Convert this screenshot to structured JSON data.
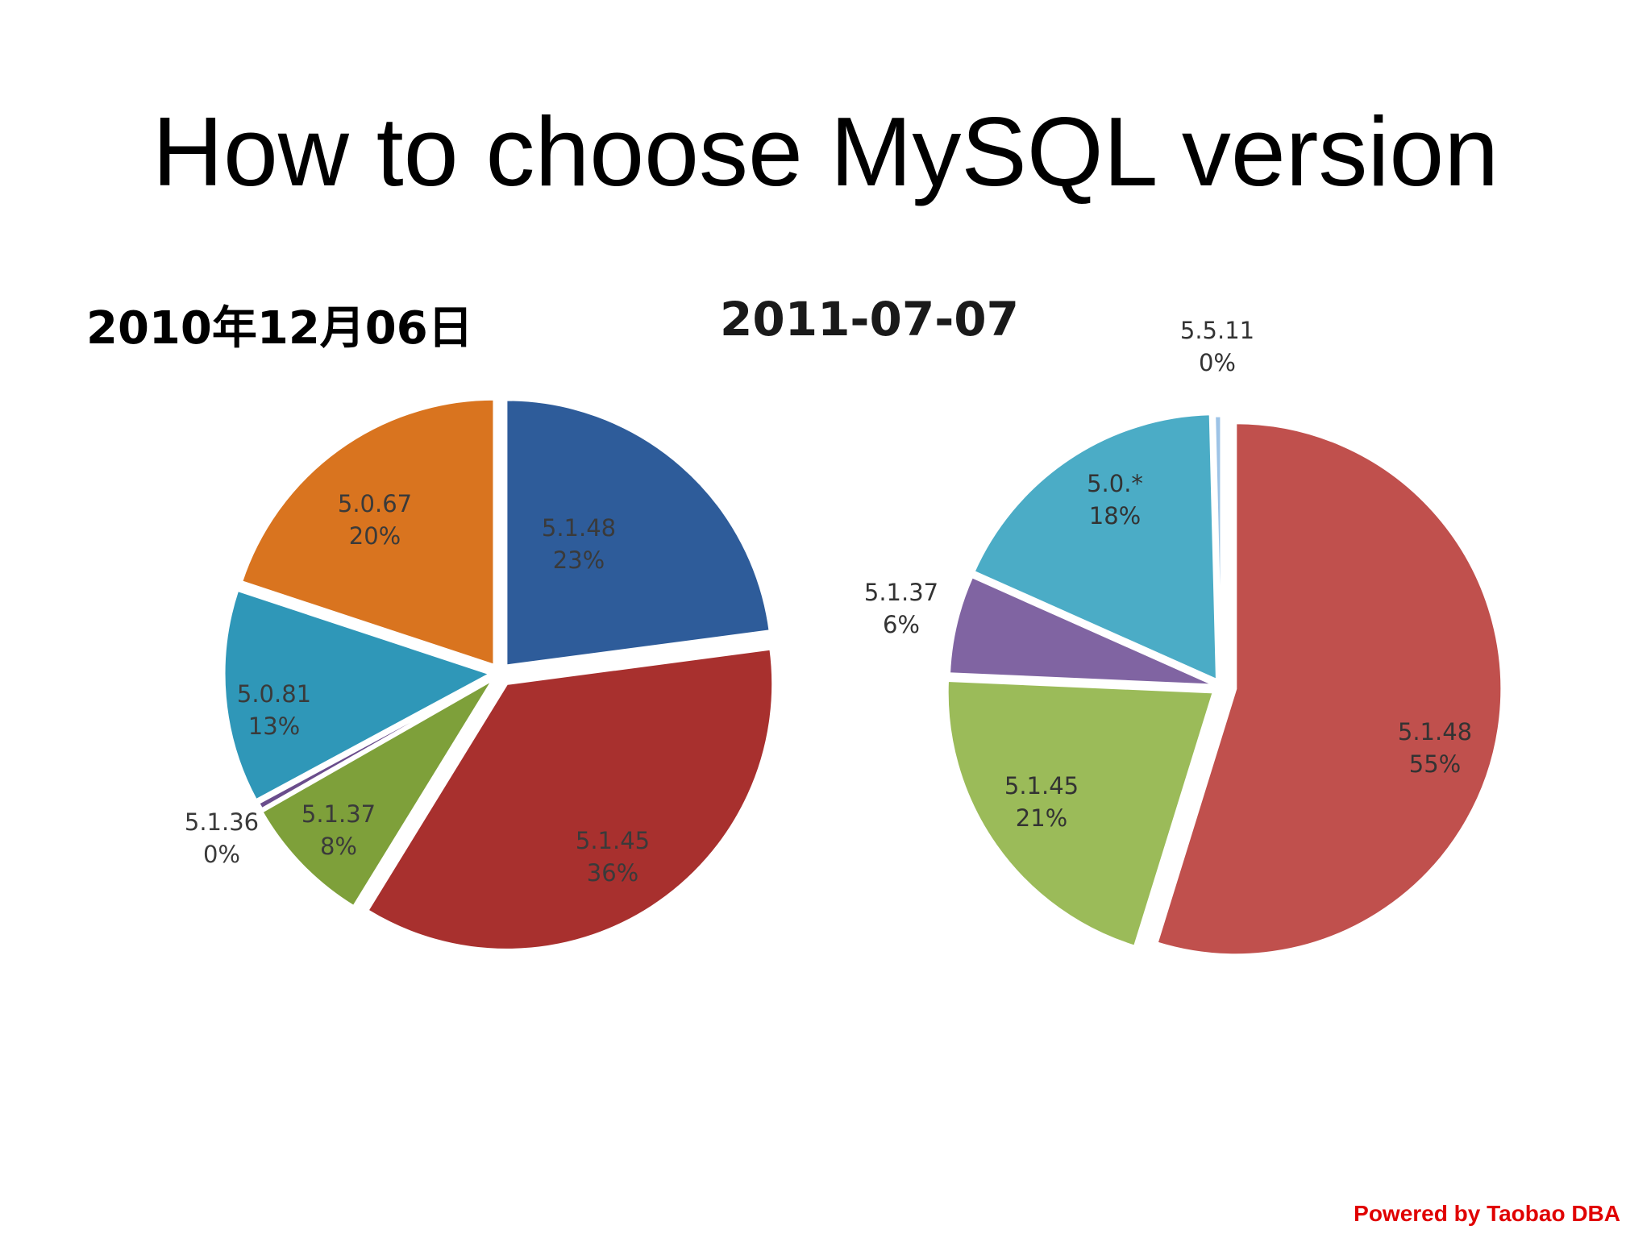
{
  "slide": {
    "title": "How to choose MySQL version",
    "footer": "Powered by Taobao DBA"
  },
  "chart_data": [
    {
      "type": "pie",
      "title": "2010年12月06日",
      "slices": [
        {
          "label": "5.1.48",
          "percent_label": "23%",
          "value": 23,
          "color": "#2e5c9a"
        },
        {
          "label": "5.1.45",
          "percent_label": "36%",
          "value": 36,
          "color": "#a8302e"
        },
        {
          "label": "5.1.37",
          "percent_label": "8%",
          "value": 8,
          "color": "#7ea03a"
        },
        {
          "label": "5.1.36",
          "percent_label": "0%",
          "value": 0.4,
          "color": "#6a4d8c"
        },
        {
          "label": "5.0.81",
          "percent_label": "13%",
          "value": 13,
          "color": "#2f97b8"
        },
        {
          "label": "5.0.67",
          "percent_label": "20%",
          "value": 20,
          "color": "#d9741f"
        }
      ]
    },
    {
      "type": "pie",
      "title": "2011-07-07",
      "slices": [
        {
          "label": "5.1.48",
          "percent_label": "55%",
          "value": 55,
          "color": "#c0504d"
        },
        {
          "label": "5.1.45",
          "percent_label": "21%",
          "value": 21,
          "color": "#9bbb59"
        },
        {
          "label": "5.1.37",
          "percent_label": "6%",
          "value": 6,
          "color": "#8064a2"
        },
        {
          "label": "5.0.*",
          "percent_label": "18%",
          "value": 18,
          "color": "#4bacc6"
        },
        {
          "label": "5.5.11",
          "percent_label": "0%",
          "value": 0.4,
          "color": "#9dc3e6"
        }
      ]
    }
  ]
}
